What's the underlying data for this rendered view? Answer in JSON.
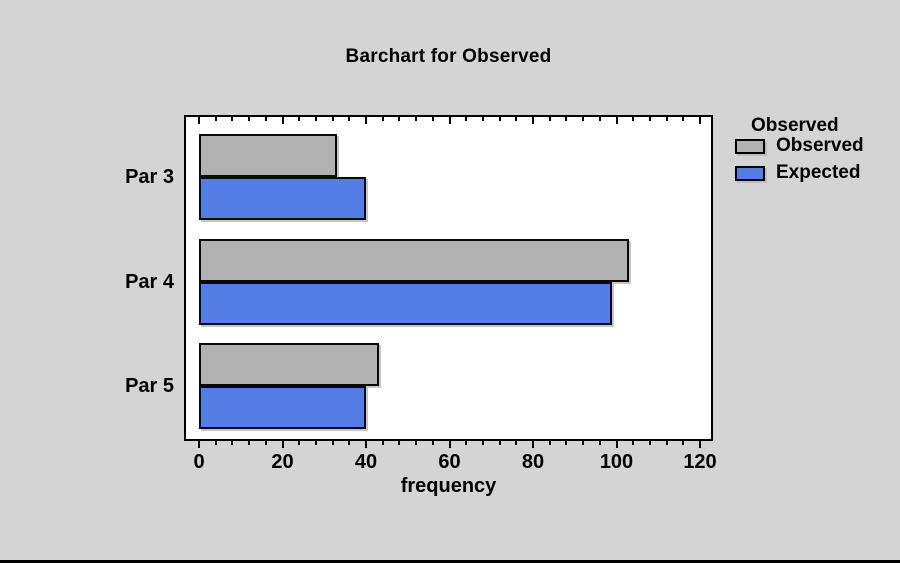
{
  "chart_data": {
    "type": "bar",
    "orientation": "horizontal",
    "title": "Barchart for Observed",
    "xlabel": "frequency",
    "categories": [
      "Par 3",
      "Par 4",
      "Par 5"
    ],
    "series": [
      {
        "name": "Observed",
        "color": "#b2b2b2",
        "values": [
          33,
          103,
          43
        ]
      },
      {
        "name": "Expected",
        "color": "#547ee4",
        "values": [
          40,
          99,
          40
        ]
      }
    ],
    "xlim": [
      0,
      120
    ],
    "x_major_ticks": [
      0,
      20,
      40,
      60,
      80,
      100,
      120
    ],
    "x_minor_step": 4,
    "grid": false,
    "legend": {
      "title": "Observed",
      "position": "right",
      "entries": [
        "Observed",
        "Expected"
      ]
    }
  },
  "colors": {
    "background": "#d4d4d4",
    "plot_background": "#ffffff",
    "frame": "#000000",
    "bar_observed": "#b2b2b2",
    "bar_expected": "#547ee4",
    "text": "#000000",
    "bottom_strip": "#000000"
  }
}
